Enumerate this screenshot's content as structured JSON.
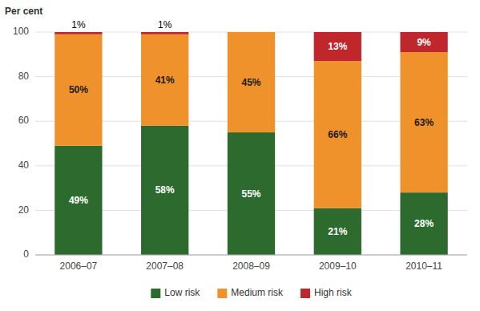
{
  "chart_data": {
    "type": "bar",
    "stacked": true,
    "y_label": "Per cent",
    "categories": [
      "2006–07",
      "2007–08",
      "2008–09",
      "2009–10",
      "2010–11"
    ],
    "series": [
      {
        "name": "Low risk",
        "color": "#2d6a2d",
        "values": [
          49,
          58,
          55,
          21,
          28
        ],
        "value_labels": [
          "49%",
          "58%",
          "55%",
          "21%",
          "28%"
        ]
      },
      {
        "name": "Medium risk",
        "color": "#f0922b",
        "values": [
          50,
          41,
          45,
          66,
          63
        ],
        "value_labels": [
          "50%",
          "41%",
          "45%",
          "66%",
          "63%"
        ]
      },
      {
        "name": "High risk",
        "color": "#c0272d",
        "values": [
          1,
          1,
          0,
          13,
          9
        ],
        "value_labels": [
          "1%",
          "1%",
          null,
          "13%",
          "9%"
        ]
      }
    ],
    "ylim": [
      0,
      100
    ],
    "yticks": [
      0,
      20,
      40,
      60,
      80,
      100
    ],
    "grid": true,
    "legend": "bottom",
    "data_labels": true
  }
}
